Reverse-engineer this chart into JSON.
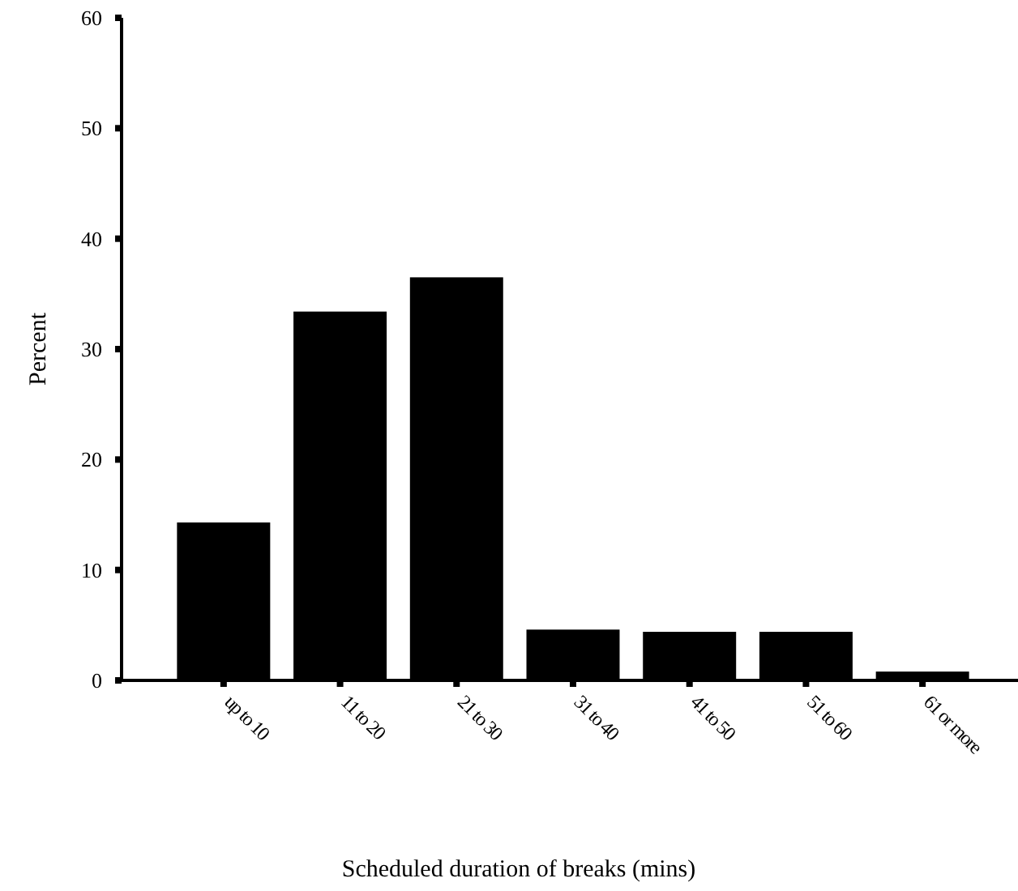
{
  "chart_data": {
    "type": "bar",
    "xlabel": "Scheduled duration of breaks (mins)",
    "ylabel": "Percent",
    "categories": [
      "up to 10",
      "11 to 20",
      "21 to 30",
      "31 to 40",
      "41 to 50",
      "51 to 60",
      "61 or more"
    ],
    "values": [
      14.3,
      33.4,
      36.5,
      4.6,
      4.4,
      4.4,
      0.8
    ],
    "color": "#000000",
    "ylim": [
      0,
      60
    ],
    "yticks": [
      0,
      10,
      20,
      30,
      40,
      50,
      60
    ],
    "grid": false
  }
}
